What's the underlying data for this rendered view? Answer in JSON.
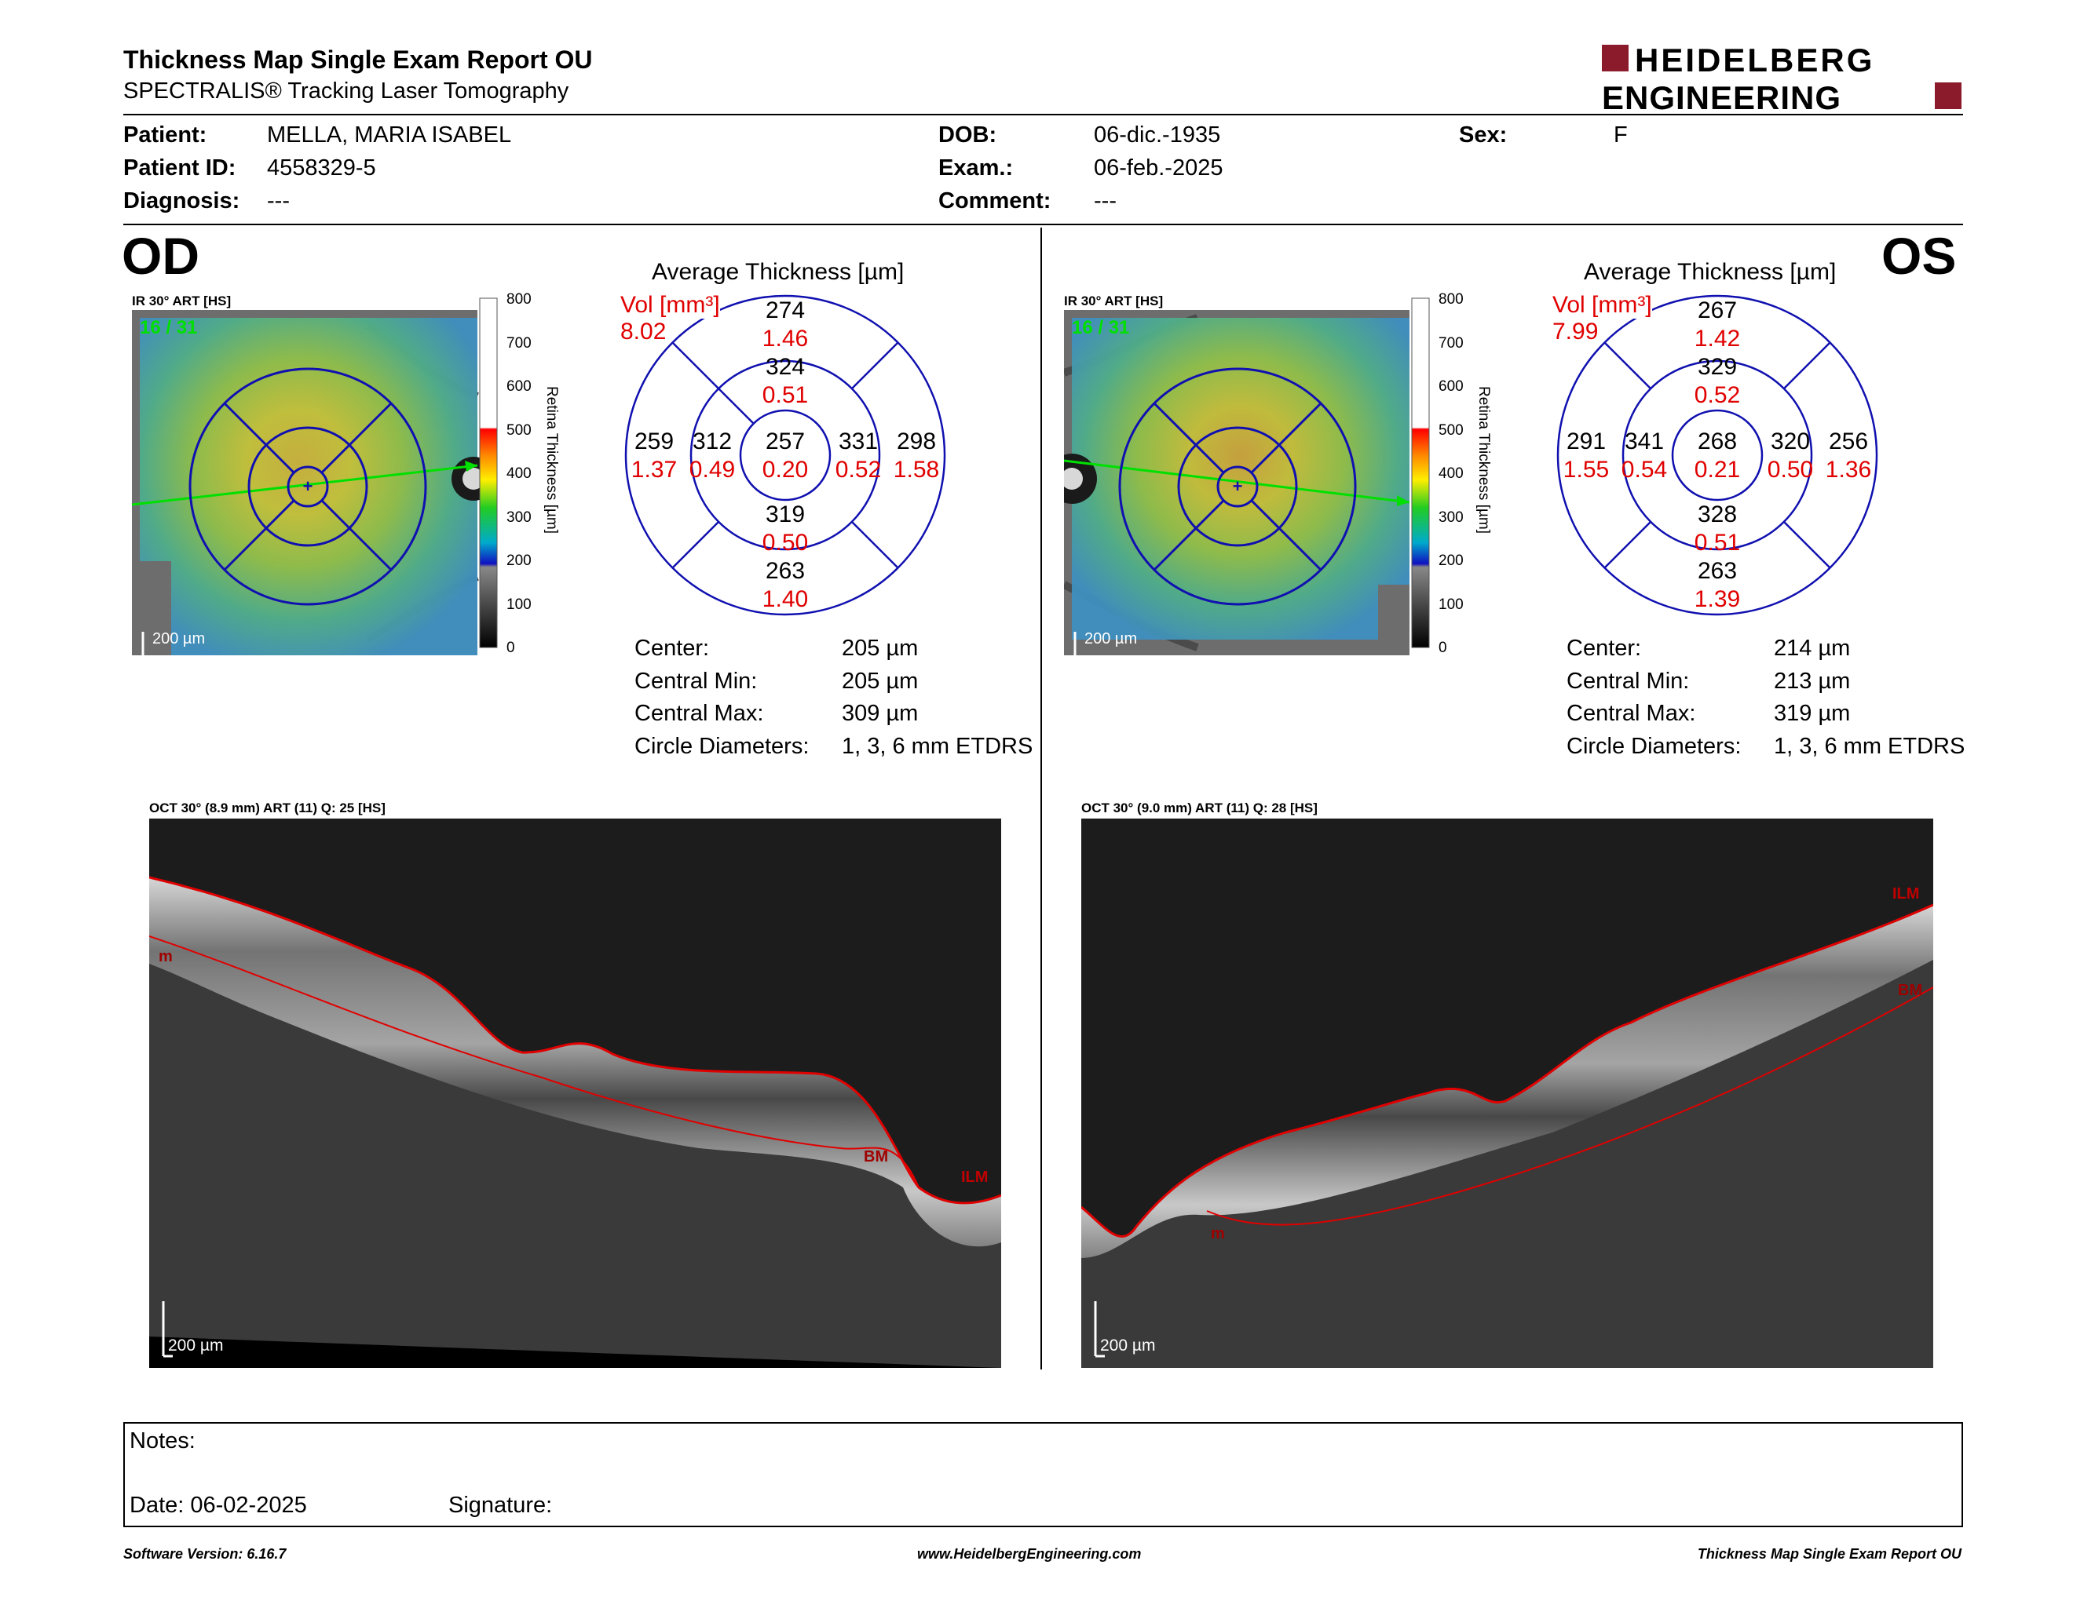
{
  "header": {
    "title": "Thickness Map Single Exam Report OU",
    "subtitle": "SPECTRALIS® Tracking Laser Tomography",
    "logo_line1": "HEIDELBERG",
    "logo_line2": "ENGINEERING",
    "brand_color": "#8B1A2B"
  },
  "patient": {
    "patient_label": "Patient:",
    "patient_value": "MELLA, MARIA ISABEL",
    "id_label": "Patient ID:",
    "id_value": "4558329-5",
    "diagnosis_label": "Diagnosis:",
    "diagnosis_value": "---",
    "dob_label": "DOB:",
    "dob_value": "06-dic.-1935",
    "exam_label": "Exam.:",
    "exam_value": "06-feb.-2025",
    "comment_label": "Comment:",
    "comment_value": "---",
    "sex_label": "Sex:",
    "sex_value": "F"
  },
  "od": {
    "eye": "OD",
    "ir_label": "IR 30° ART [HS]",
    "frame_count": "16 / 31",
    "scale_label": "200 µm",
    "colorbar_title": "Retina Thickness [µm]",
    "colorbar_ticks": [
      "800",
      "700",
      "600",
      "500",
      "400",
      "300",
      "200",
      "100",
      "0"
    ],
    "avg_title": "Average Thickness [µm]",
    "vol_label": "Vol [mm³]",
    "vol_value": "8.02",
    "grid": {
      "center_t": "257",
      "center_v": "0.20",
      "inner_sup_t": "324",
      "inner_sup_v": "0.51",
      "inner_inf_t": "319",
      "inner_inf_v": "0.50",
      "inner_left_t": "312",
      "inner_left_v": "0.49",
      "inner_right_t": "331",
      "inner_right_v": "0.52",
      "outer_sup_t": "274",
      "outer_sup_v": "1.46",
      "outer_inf_t": "263",
      "outer_inf_v": "1.40",
      "outer_left_t": "259",
      "outer_left_v": "1.37",
      "outer_right_t": "298",
      "outer_right_v": "1.58"
    },
    "stats": {
      "center_label": "Center:",
      "center_value": "205 µm",
      "min_label": "Central Min:",
      "min_value": "205 µm",
      "max_label": "Central Max:",
      "max_value": "309 µm",
      "diam_label": "Circle Diameters:",
      "diam_value": "1, 3, 6 mm ETDRS"
    },
    "oct_label": "OCT 30° (8.9 mm) ART (11) Q: 25 [HS]",
    "oct_scale": "200 µm",
    "layer_ilm": "ILM",
    "layer_bm": "BM",
    "layer_m": "m"
  },
  "os": {
    "eye": "OS",
    "ir_label": "IR 30° ART [HS]",
    "frame_count": "16 / 31",
    "scale_label": "200 µm",
    "colorbar_title": "Retina Thickness [µm]",
    "colorbar_ticks": [
      "800",
      "700",
      "600",
      "500",
      "400",
      "300",
      "200",
      "100",
      "0"
    ],
    "avg_title": "Average Thickness [µm]",
    "vol_label": "Vol [mm³]",
    "vol_value": "7.99",
    "grid": {
      "center_t": "268",
      "center_v": "0.21",
      "inner_sup_t": "329",
      "inner_sup_v": "0.52",
      "inner_inf_t": "328",
      "inner_inf_v": "0.51",
      "inner_left_t": "341",
      "inner_left_v": "0.54",
      "inner_right_t": "320",
      "inner_right_v": "0.50",
      "outer_sup_t": "267",
      "outer_sup_v": "1.42",
      "outer_inf_t": "263",
      "outer_inf_v": "1.39",
      "outer_left_t": "291",
      "outer_left_v": "1.55",
      "outer_right_t": "256",
      "outer_right_v": "1.36"
    },
    "stats": {
      "center_label": "Center:",
      "center_value": "214 µm",
      "min_label": "Central Min:",
      "min_value": "213 µm",
      "max_label": "Central Max:",
      "max_value": "319 µm",
      "diam_label": "Circle Diameters:",
      "diam_value": "1, 3, 6 mm ETDRS"
    },
    "oct_label": "OCT 30° (9.0 mm) ART (11) Q: 28 [HS]",
    "oct_scale": "200 µm",
    "layer_ilm": "ILM",
    "layer_bm": "BM",
    "layer_m": "m"
  },
  "notes": {
    "notes_label": "Notes:",
    "date_label": "Date: 06-02-2025",
    "signature_label": "Signature:"
  },
  "footer": {
    "software": "Software Version: 6.16.7",
    "website": "www.HeidelbergEngineering.com",
    "report": "Thickness Map Single Exam Report OU"
  }
}
